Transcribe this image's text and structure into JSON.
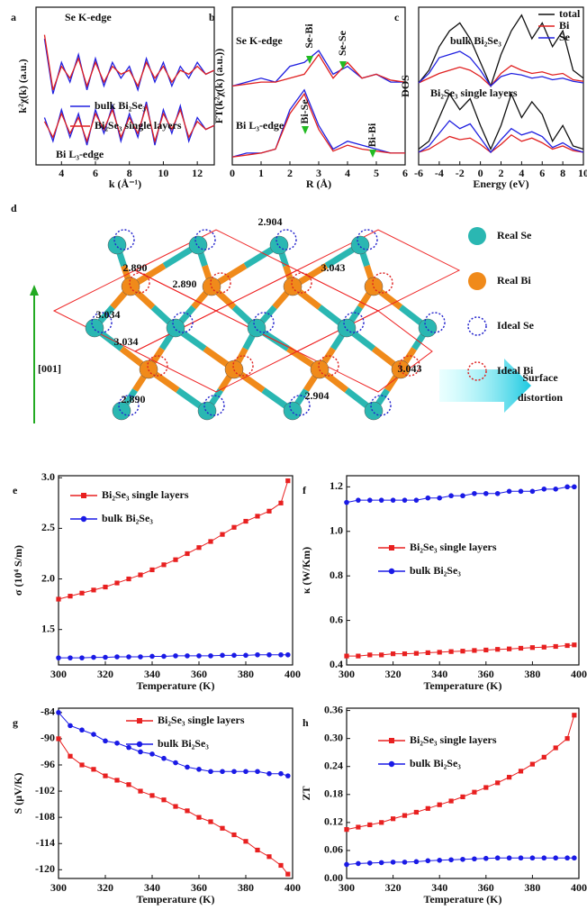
{
  "chart_data": [
    {
      "type": "line",
      "panel_label": "a",
      "x_label": "k (Å⁻¹)",
      "y_label": "k²χ(k) (a.u.)",
      "annotations": [
        "Se K-edge",
        "Bi L₃-edge"
      ],
      "x": [
        3,
        3.5,
        4,
        4.5,
        5,
        5.5,
        6,
        6.5,
        7,
        7.5,
        8,
        8.5,
        9,
        9.5,
        10,
        10.5,
        11,
        11.5,
        12,
        12.5,
        13
      ],
      "xlim": [
        2.5,
        13
      ],
      "ylim": [
        0,
        4
      ],
      "xticks": [
        4,
        6,
        8,
        10,
        12
      ],
      "yticks": [],
      "series": [
        {
          "name": "bulk Bi₂Se₃",
          "color": "#2020e0",
          "values": [
            3.2,
            1.8,
            2.6,
            2.1,
            2.8,
            1.9,
            2.7,
            2.0,
            2.6,
            2.2,
            2.5,
            1.9,
            2.7,
            2.1,
            2.6,
            2.0,
            2.5,
            2.2,
            2.6,
            2.3,
            2.4
          ]
        },
        {
          "name": "Bi₂Se₃ single layers",
          "color": "#e02020",
          "values": [
            3.3,
            1.9,
            2.5,
            2.2,
            2.7,
            2.0,
            2.6,
            2.1,
            2.5,
            2.3,
            2.4,
            2.0,
            2.6,
            2.2,
            2.5,
            2.1,
            2.4,
            2.3,
            2.5,
            2.3,
            2.4
          ]
        },
        {
          "color": "#2020e0",
          "values": [
            1.2,
            0.6,
            1.4,
            0.7,
            1.3,
            0.5,
            1.4,
            0.8,
            1.5,
            0.6,
            1.3,
            0.7,
            1.6,
            0.5,
            1.4,
            0.8,
            1.5,
            0.6,
            1.2,
            0.9,
            1.0
          ]
        },
        {
          "color": "#e02020",
          "values": [
            1.1,
            0.7,
            1.3,
            0.8,
            1.2,
            0.6,
            1.3,
            0.9,
            1.4,
            0.7,
            1.2,
            0.8,
            1.5,
            0.6,
            1.3,
            0.9,
            1.4,
            0.7,
            1.1,
            0.9,
            1.0
          ]
        }
      ]
    },
    {
      "type": "line",
      "panel_label": "b",
      "x_label": "R (Å)",
      "y_label": "FT(k²χ(k) (a.u.))",
      "annotations": [
        "Se K-edge",
        "Bi L₃-edge",
        "Se-Bi",
        "Se-Se",
        "Bi-Se",
        "Bi-Bi"
      ],
      "x": [
        0,
        0.5,
        1,
        1.5,
        2,
        2.5,
        3,
        3.5,
        4,
        4.5,
        5,
        5.5,
        6
      ],
      "xlim": [
        0,
        6
      ],
      "ylim": [
        0,
        4
      ],
      "xticks": [
        0,
        1,
        2,
        3,
        4,
        5,
        6
      ],
      "yticks": [],
      "series": [
        {
          "color": "#2020e0",
          "values": [
            2.0,
            2.1,
            2.2,
            2.1,
            2.5,
            2.6,
            2.9,
            2.3,
            2.5,
            2.2,
            2.3,
            2.1,
            2.1
          ]
        },
        {
          "color": "#e02020",
          "values": [
            2.0,
            2.05,
            2.1,
            2.1,
            2.2,
            2.3,
            2.8,
            2.2,
            2.6,
            2.2,
            2.3,
            2.15,
            2.1
          ]
        },
        {
          "color": "#2020e0",
          "values": [
            0.2,
            0.3,
            0.3,
            0.4,
            1.4,
            1.9,
            1.0,
            0.4,
            0.6,
            0.5,
            0.4,
            0.3,
            0.3
          ]
        },
        {
          "color": "#e02020",
          "values": [
            0.2,
            0.25,
            0.3,
            0.4,
            1.3,
            1.8,
            0.9,
            0.35,
            0.5,
            0.4,
            0.35,
            0.3,
            0.3
          ]
        }
      ]
    },
    {
      "type": "line",
      "panel_label": "c",
      "x_label": "Energy (eV)",
      "y_label": "DOS",
      "annotations": [
        "bulk Bi₂Se₃",
        "Bi₂Se₃ single layers"
      ],
      "x": [
        -6,
        -5,
        -4,
        -3,
        -2,
        -1,
        0,
        1,
        2,
        3,
        4,
        5,
        6,
        7,
        8,
        9,
        10
      ],
      "xlim": [
        -6,
        10
      ],
      "ylim": [
        0,
        10
      ],
      "xticks": [
        -6,
        -4,
        -2,
        0,
        2,
        4,
        6,
        8,
        10
      ],
      "yticks": [],
      "series": [
        {
          "name": "total",
          "color": "#111111",
          "values": [
            5.2,
            6.0,
            7.5,
            8.5,
            9.0,
            8.0,
            6.5,
            5.0,
            7.0,
            8.5,
            9.5,
            8.0,
            9.0,
            7.5,
            8.5,
            6.0,
            5.5
          ]
        },
        {
          "name": "Bi",
          "color": "#e02020",
          "values": [
            5.2,
            5.5,
            5.8,
            6.0,
            6.2,
            6.0,
            5.6,
            5.0,
            5.8,
            6.3,
            6.0,
            5.8,
            5.9,
            5.7,
            5.8,
            5.4,
            5.3
          ]
        },
        {
          "name": "Se",
          "color": "#2020e0",
          "values": [
            5.2,
            5.8,
            6.8,
            7.0,
            7.2,
            6.8,
            6.0,
            5.0,
            5.6,
            5.8,
            5.7,
            5.5,
            5.6,
            5.4,
            5.5,
            5.3,
            5.2
          ]
        },
        {
          "color": "#111111",
          "values": [
            1.0,
            1.5,
            3.0,
            4.5,
            3.5,
            4.2,
            2.5,
            1.0,
            2.5,
            4.5,
            3.0,
            4.0,
            3.2,
            1.5,
            2.5,
            1.2,
            1.0
          ]
        },
        {
          "color": "#e02020",
          "values": [
            0.8,
            1.0,
            1.4,
            1.8,
            1.6,
            1.7,
            1.3,
            0.8,
            1.3,
            1.9,
            1.5,
            1.7,
            1.4,
            1.0,
            1.2,
            0.9,
            0.8
          ]
        },
        {
          "color": "#2020e0",
          "values": [
            0.8,
            1.2,
            2.0,
            2.8,
            2.3,
            2.6,
            1.7,
            0.8,
            1.6,
            2.3,
            1.9,
            2.1,
            1.8,
            1.1,
            1.4,
            1.0,
            0.8
          ]
        }
      ]
    },
    {
      "type": "line",
      "panel_label": "e",
      "x_label": "Temperature (K)",
      "y_label": "σ (10⁴ S/m)",
      "x": [
        300,
        305,
        310,
        315,
        320,
        325,
        330,
        335,
        340,
        345,
        350,
        355,
        360,
        365,
        370,
        375,
        380,
        385,
        390,
        395,
        398
      ],
      "xlim": [
        300,
        400
      ],
      "ylim": [
        1.15,
        3.02
      ],
      "xticks": [
        300,
        320,
        340,
        360,
        380,
        400
      ],
      "yticks": [
        1.5,
        {
          "value": 2,
          "label": "2.0"
        },
        2.5,
        {
          "value": 3,
          "label": "3.0"
        }
      ],
      "series": [
        {
          "name": "Bi₂Se₃ single layers",
          "color": "#e82020",
          "marker": "square",
          "values": [
            1.8,
            1.83,
            1.86,
            1.89,
            1.92,
            1.96,
            2.0,
            2.04,
            2.09,
            2.14,
            2.19,
            2.25,
            2.31,
            2.37,
            2.44,
            2.51,
            2.57,
            2.62,
            2.67,
            2.75,
            2.97
          ]
        },
        {
          "name": "bulk Bi₂Se₃",
          "color": "#1a1ae6",
          "marker": "circle",
          "values": [
            1.22,
            1.22,
            1.22,
            1.225,
            1.225,
            1.23,
            1.23,
            1.23,
            1.235,
            1.235,
            1.24,
            1.24,
            1.24,
            1.24,
            1.245,
            1.245,
            1.245,
            1.25,
            1.25,
            1.25,
            1.25
          ]
        }
      ]
    },
    {
      "type": "line",
      "panel_label": "f",
      "x_label": "Temperature (K)",
      "y_label": "κ (W/Km)",
      "x": [
        300,
        305,
        310,
        315,
        320,
        325,
        330,
        335,
        340,
        345,
        350,
        355,
        360,
        365,
        370,
        375,
        380,
        385,
        390,
        395,
        398
      ],
      "xlim": [
        300,
        400
      ],
      "ylim": [
        0.4,
        1.25
      ],
      "xticks": [
        300,
        320,
        340,
        360,
        380,
        400
      ],
      "yticks": [
        0.4,
        0.6,
        0.8,
        {
          "value": 1,
          "label": "1.0"
        },
        1.2
      ],
      "series": [
        {
          "name": "Bi₂Se₃ single layers",
          "color": "#e82020",
          "marker": "square",
          "values": [
            0.44,
            0.44,
            0.445,
            0.445,
            0.45,
            0.45,
            0.452,
            0.455,
            0.457,
            0.46,
            0.462,
            0.465,
            0.467,
            0.47,
            0.472,
            0.475,
            0.478,
            0.48,
            0.483,
            0.487,
            0.49
          ]
        },
        {
          "name": "bulk Bi₂Se₃",
          "color": "#1a1ae6",
          "marker": "circle",
          "values": [
            1.13,
            1.14,
            1.14,
            1.14,
            1.14,
            1.14,
            1.14,
            1.15,
            1.15,
            1.16,
            1.16,
            1.17,
            1.17,
            1.17,
            1.18,
            1.18,
            1.18,
            1.19,
            1.19,
            1.2,
            1.2
          ]
        }
      ]
    },
    {
      "type": "line",
      "panel_label": "g",
      "x_label": "Temperature (K)",
      "y_label": "S (μV/K)",
      "x": [
        300,
        305,
        310,
        315,
        320,
        325,
        330,
        335,
        340,
        345,
        350,
        355,
        360,
        365,
        370,
        375,
        380,
        385,
        390,
        395,
        398
      ],
      "xlim": [
        300,
        400
      ],
      "ylim": [
        -122,
        -83
      ],
      "xticks": [
        300,
        320,
        340,
        360,
        380,
        400
      ],
      "yticks": [
        -84,
        -90,
        -96,
        -102,
        -108,
        -114,
        -120
      ],
      "series": [
        {
          "name": "Bi₂Se₃ single layers",
          "color": "#e82020",
          "marker": "square",
          "values": [
            -90,
            -94,
            -96,
            -97,
            -98.5,
            -99.5,
            -100.5,
            -102,
            -103,
            -104,
            -105.5,
            -106.5,
            -108,
            -109,
            -110.5,
            -112,
            -113.5,
            -115.5,
            -117,
            -119,
            -121
          ]
        },
        {
          "name": "bulk Bi₂Se₃",
          "color": "#1a1ae6",
          "marker": "circle",
          "values": [
            -84,
            -87,
            -88,
            -89,
            -90.5,
            -91,
            -92,
            -93,
            -93.5,
            -94.5,
            -95.5,
            -96.5,
            -97,
            -97.5,
            -97.5,
            -97.5,
            -97.5,
            -97.5,
            -98,
            -98,
            -98.5
          ]
        }
      ]
    },
    {
      "type": "line",
      "panel_label": "h",
      "x_label": "Temperature (K)",
      "y_label": "ZT",
      "x": [
        300,
        305,
        310,
        315,
        320,
        325,
        330,
        335,
        340,
        345,
        350,
        355,
        360,
        365,
        370,
        375,
        380,
        385,
        390,
        395,
        398
      ],
      "xlim": [
        300,
        400
      ],
      "ylim": [
        0,
        0.365
      ],
      "xticks": [
        300,
        320,
        340,
        360,
        380,
        400
      ],
      "yticks": [
        {
          "value": 0,
          "label": "0.00"
        },
        0.06,
        0.12,
        0.18,
        0.24,
        {
          "value": 0.3,
          "label": "0.30"
        },
        0.36
      ],
      "series": [
        {
          "name": "Bi₂Se₃ single layers",
          "color": "#e82020",
          "marker": "square",
          "values": [
            0.105,
            0.11,
            0.115,
            0.12,
            0.128,
            0.135,
            0.142,
            0.15,
            0.158,
            0.166,
            0.175,
            0.185,
            0.195,
            0.205,
            0.217,
            0.23,
            0.245,
            0.26,
            0.28,
            0.3,
            0.35
          ]
        },
        {
          "name": "bulk Bi₂Se₃",
          "color": "#1a1ae6",
          "marker": "circle",
          "values": [
            0.03,
            0.032,
            0.033,
            0.034,
            0.035,
            0.035,
            0.036,
            0.038,
            0.039,
            0.04,
            0.041,
            0.042,
            0.043,
            0.044,
            0.044,
            0.044,
            0.044,
            0.044,
            0.044,
            0.044,
            0.044
          ]
        }
      ]
    }
  ],
  "diagram": {
    "panel_label": "d",
    "bond_labels": [
      "2.904",
      "2.890",
      "2.890",
      "3.043",
      "3.034",
      "3.034",
      "3.043",
      "2.890",
      "2.904"
    ],
    "legend": [
      "Real Se",
      "Real Bi",
      "Ideal Se",
      "Ideal Bi"
    ],
    "axis_label": "[001]",
    "arrow_label": [
      "Surface",
      "distortion"
    ]
  }
}
